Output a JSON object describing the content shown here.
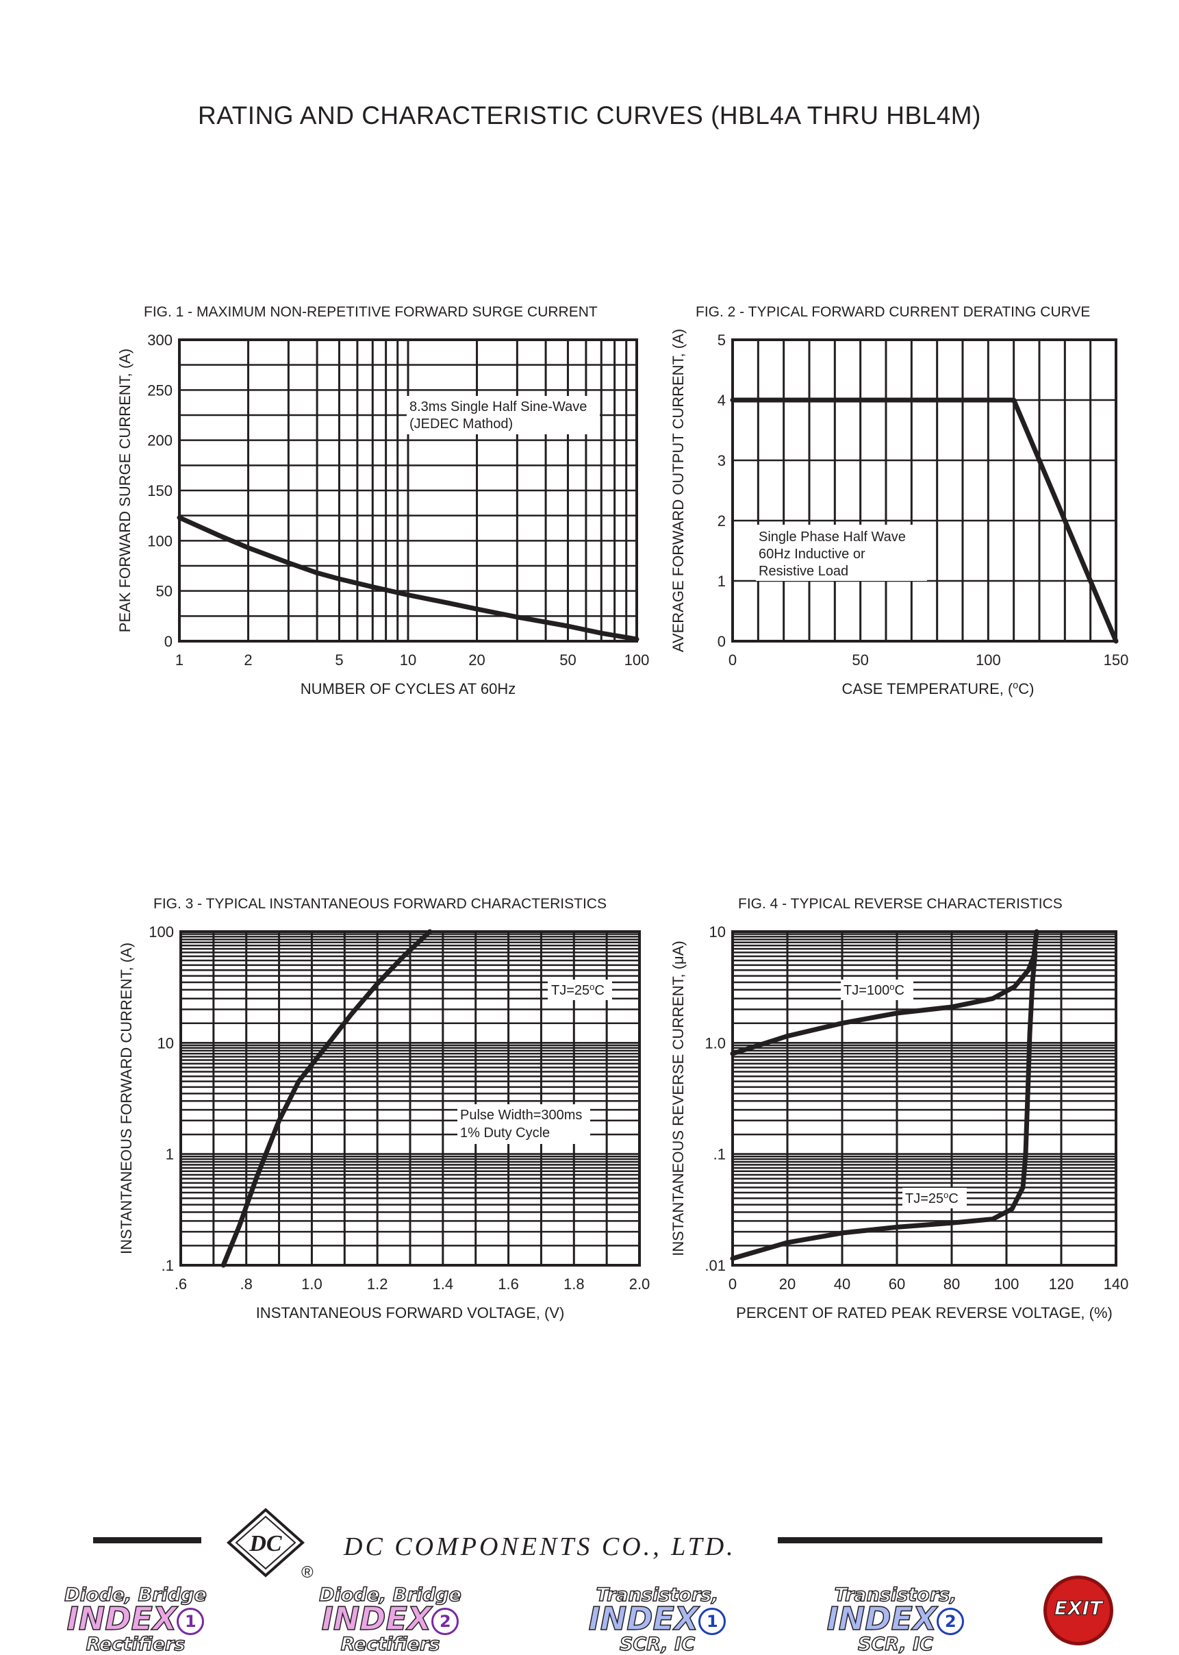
{
  "page_title": "RATING AND CHARACTERISTIC CURVES (HBL4A THRU HBL4M)",
  "footer": {
    "company": "DC COMPONENTS CO., LTD.",
    "logo_text": "DC",
    "registered_mark": "®",
    "nav": [
      {
        "line1": "Diode, Bridge",
        "line2": "INDEX",
        "num": "1",
        "line3": "Rectifiers",
        "icon": "index-1-rectifiers"
      },
      {
        "line1": "Diode, Bridge",
        "line2": "INDEX",
        "num": "2",
        "line3": "Rectifiers",
        "icon": "index-2-rectifiers"
      },
      {
        "line1": "Transistors,",
        "line2": "INDEX",
        "num": "1",
        "line3": "SCR, IC",
        "icon": "index-1-transistors"
      },
      {
        "line1": "Transistors,",
        "line2": "INDEX",
        "num": "2",
        "line3": "SCR, IC",
        "icon": "index-2-transistors"
      }
    ],
    "exit_label": "EXIT"
  },
  "colors": {
    "ink": "#231f20",
    "background": "#ffffff"
  },
  "chart_data": [
    {
      "id": "fig1",
      "type": "line",
      "title": "FIG. 1 - MAXIMUM NON-REPETITIVE FORWARD SURGE CURRENT",
      "xlabel": "NUMBER OF CYCLES AT 60Hz",
      "ylabel": "PEAK FORWARD SURGE CURRENT, (A)",
      "xscale": "log",
      "xlim": [
        1,
        100
      ],
      "ylim": [
        0,
        300
      ],
      "xticks": [
        1,
        2,
        5,
        10,
        20,
        50,
        100
      ],
      "xtick_labels": [
        "1",
        "2",
        "5",
        "10",
        "20",
        "50",
        "100"
      ],
      "yticks": [
        0,
        50,
        100,
        150,
        200,
        250,
        300
      ],
      "ytick_labels": [
        "0",
        "50",
        "100",
        "150",
        "200",
        "250",
        "300"
      ],
      "grid": true,
      "annotation": [
        "8.3ms Single Half Sine-Wave",
        "(JEDEC Mathod)"
      ],
      "series": [
        {
          "x": [
            1,
            1.5,
            2,
            3,
            4,
            5,
            7,
            10,
            15,
            20,
            30,
            50,
            70,
            100
          ],
          "y": [
            123,
            105,
            93,
            78,
            68,
            62,
            54,
            46,
            38,
            32,
            24,
            15,
            8,
            2
          ]
        }
      ]
    },
    {
      "id": "fig2",
      "type": "line",
      "title": "FIG. 2 - TYPICAL FORWARD CURRENT DERATING CURVE",
      "xlabel": "CASE TEMPERATURE, (",
      "xlabel_sup": "o",
      "xlabel_end": "C)",
      "ylabel": "AVERAGE FORWARD OUTPUT CURRENT, (A)",
      "xlim": [
        0,
        150
      ],
      "ylim": [
        0,
        5
      ],
      "xticks": [
        0,
        50,
        100,
        150
      ],
      "xtick_labels": [
        "0",
        "50",
        "100",
        "150"
      ],
      "yticks": [
        0,
        1,
        2,
        3,
        4,
        5
      ],
      "ytick_labels": [
        "0",
        "1",
        "2",
        "3",
        "4",
        "5"
      ],
      "grid": true,
      "annotation": [
        "Single Phase Half Wave",
        "60Hz Inductive or",
        "Resistive Load"
      ],
      "series": [
        {
          "x": [
            0,
            110,
            150
          ],
          "y": [
            4,
            4,
            0
          ]
        }
      ]
    },
    {
      "id": "fig3",
      "type": "line",
      "title": "FIG. 3 - TYPICAL INSTANTANEOUS FORWARD CHARACTERISTICS",
      "xlabel": "INSTANTANEOUS FORWARD VOLTAGE, (V)",
      "ylabel": "INSTANTANEOUS FORWARD CURRENT, (A)",
      "yscale": "log",
      "xlim": [
        0.6,
        2.0
      ],
      "ylim": [
        0.1,
        100
      ],
      "xticks": [
        0.6,
        0.8,
        1.0,
        1.2,
        1.4,
        1.6,
        1.8,
        2.0
      ],
      "xtick_labels": [
        ".6",
        ".8",
        "1.0",
        "1.2",
        "1.4",
        "1.6",
        "1.8",
        "2.0"
      ],
      "yticks": [
        0.1,
        1,
        10,
        100
      ],
      "ytick_labels": [
        ".1",
        "1",
        "10",
        "100"
      ],
      "grid": true,
      "annotation_tj": [
        "TJ=25",
        "o",
        "C"
      ],
      "annotation": [
        "Pulse Width=300ms",
        "1% Duty Cycle"
      ],
      "series": [
        {
          "x": [
            0.73,
            0.78,
            0.83,
            0.9,
            0.96,
            1.04,
            1.12,
            1.2,
            1.28,
            1.36
          ],
          "y": [
            0.1,
            0.23,
            0.6,
            2,
            4.5,
            9,
            18,
            34,
            60,
            100
          ]
        }
      ]
    },
    {
      "id": "fig4",
      "type": "line",
      "title": "FIG. 4 - TYPICAL REVERSE CHARACTERISTICS",
      "xlabel": "PERCENT OF RATED PEAK REVERSE VOLTAGE, (%)",
      "ylabel_pre": "INSTANTANEOUS REVERSE CURRENT, (",
      "ylabel_mu": "μ",
      "ylabel_end": "A)",
      "xlim": [
        0,
        140
      ],
      "yscale": "log",
      "ylim": [
        0.01,
        10
      ],
      "xticks": [
        0,
        20,
        40,
        60,
        80,
        100,
        120,
        140
      ],
      "xtick_labels": [
        "0",
        "20",
        "40",
        "60",
        "80",
        "100",
        "120",
        "140"
      ],
      "yticks": [
        0.01,
        0.1,
        1,
        10
      ],
      "ytick_labels": [
        ".01",
        ".1",
        "1.0",
        "10"
      ],
      "grid": true,
      "series": [
        {
          "name": "TJ=100°C",
          "label": [
            "TJ=100",
            "o",
            "C"
          ],
          "x": [
            0,
            20,
            40,
            60,
            80,
            95,
            103,
            108,
            110,
            111
          ],
          "y": [
            0.8,
            1.15,
            1.5,
            1.85,
            2.1,
            2.5,
            3.2,
            4.5,
            6,
            10
          ]
        },
        {
          "name": "TJ=25°C",
          "label": [
            "TJ=25",
            "o",
            "C"
          ],
          "x": [
            0,
            20,
            40,
            60,
            80,
            95,
            102,
            106,
            107,
            108,
            108.5,
            109.5,
            110.5
          ],
          "y": [
            0.0115,
            0.016,
            0.0195,
            0.022,
            0.024,
            0.026,
            0.032,
            0.05,
            0.1,
            0.5,
            1.2,
            3.5,
            6.5
          ]
        }
      ]
    }
  ]
}
